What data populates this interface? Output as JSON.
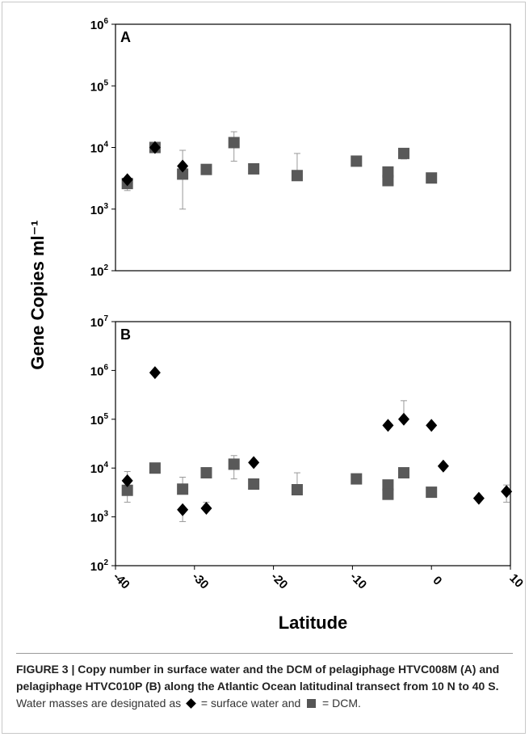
{
  "chart_data": [
    {
      "type": "scatter",
      "panel_label": "A",
      "ylabel": "Gene Copies ml⁻¹",
      "yscale": "log",
      "yticks": [
        "10^2",
        "10^3",
        "10^4",
        "10^5",
        "10^6"
      ],
      "ylim": [
        100,
        1000000
      ],
      "xlim": [
        -40,
        10
      ],
      "show_x_ticks": false,
      "series": [
        {
          "name": "surface water",
          "marker": "diamond",
          "color": "#000000",
          "points": [
            {
              "x": -38.5,
              "y": 3000
            },
            {
              "x": -35,
              "y": 10000
            },
            {
              "x": -31.5,
              "y": 5000
            }
          ]
        },
        {
          "name": "DCM",
          "marker": "square",
          "color": "#595959",
          "points": [
            {
              "x": -38.5,
              "y": 2600,
              "err_low": 2000,
              "err_high": 3100
            },
            {
              "x": -35,
              "y": 10000
            },
            {
              "x": -31.5,
              "y": 3700,
              "err_low": 1000,
              "err_high": 9000
            },
            {
              "x": -28.5,
              "y": 4400
            },
            {
              "x": -25,
              "y": 12000,
              "err_low": 6000,
              "err_high": 18000
            },
            {
              "x": -22.5,
              "y": 4500
            },
            {
              "x": -17,
              "y": 3500,
              "err_high": 8000
            },
            {
              "x": -9.5,
              "y": 6000
            },
            {
              "x": -5.5,
              "y": 4000
            },
            {
              "x": -5.5,
              "y": 2900
            },
            {
              "x": -3.5,
              "y": 8000,
              "err_low": 6500,
              "err_high": 9000
            },
            {
              "x": 0,
              "y": 3200
            }
          ]
        }
      ]
    },
    {
      "type": "scatter",
      "panel_label": "B",
      "xlabel": "Latitude",
      "yscale": "log",
      "yticks": [
        "10^2",
        "10^3",
        "10^4",
        "10^5",
        "10^6",
        "10^7"
      ],
      "xticks": [
        -40,
        -30,
        -20,
        -10,
        0,
        10
      ],
      "ylim": [
        100,
        10000000
      ],
      "xlim": [
        -40,
        10
      ],
      "series": [
        {
          "name": "surface water",
          "marker": "diamond",
          "color": "#000000",
          "points": [
            {
              "x": -38.5,
              "y": 5500,
              "err_high": 8500
            },
            {
              "x": -35,
              "y": 900000
            },
            {
              "x": -31.5,
              "y": 1400,
              "err_low": 800
            },
            {
              "x": -28.5,
              "y": 1500,
              "err_high": 2000
            },
            {
              "x": -22.5,
              "y": 13000
            },
            {
              "x": -5.5,
              "y": 75000
            },
            {
              "x": -3.5,
              "y": 100000,
              "err_high": 240000
            },
            {
              "x": 0,
              "y": 75000
            },
            {
              "x": 1.5,
              "y": 11000
            },
            {
              "x": 6,
              "y": 2400
            },
            {
              "x": 9.5,
              "y": 3300,
              "err_low": 2000,
              "err_high": 4500
            }
          ]
        },
        {
          "name": "DCM",
          "marker": "square",
          "color": "#595959",
          "points": [
            {
              "x": -38.5,
              "y": 3500,
              "err_low": 2000
            },
            {
              "x": -35,
              "y": 10000
            },
            {
              "x": -31.5,
              "y": 3700,
              "err_high": 6500
            },
            {
              "x": -28.5,
              "y": 8000
            },
            {
              "x": -25,
              "y": 12000,
              "err_low": 6000,
              "err_high": 18000
            },
            {
              "x": -22.5,
              "y": 4700
            },
            {
              "x": -17,
              "y": 3600,
              "err_high": 8000
            },
            {
              "x": -9.5,
              "y": 6000
            },
            {
              "x": -5.5,
              "y": 4500
            },
            {
              "x": -5.5,
              "y": 2900
            },
            {
              "x": -3.5,
              "y": 8000
            },
            {
              "x": 0,
              "y": 3200
            }
          ]
        }
      ]
    }
  ],
  "caption": {
    "bold": "FIGURE 3 | Copy number in surface water and the DCM of pelagiphage HTVC008M (A) and pelagiphage HTVC010P (B) along the Atlantic Ocean latitudinal transect from 10 N to 40 S.",
    "text_1": " Water masses are designated as ",
    "text_2": " = surface water and ",
    "text_3": " = DCM."
  }
}
